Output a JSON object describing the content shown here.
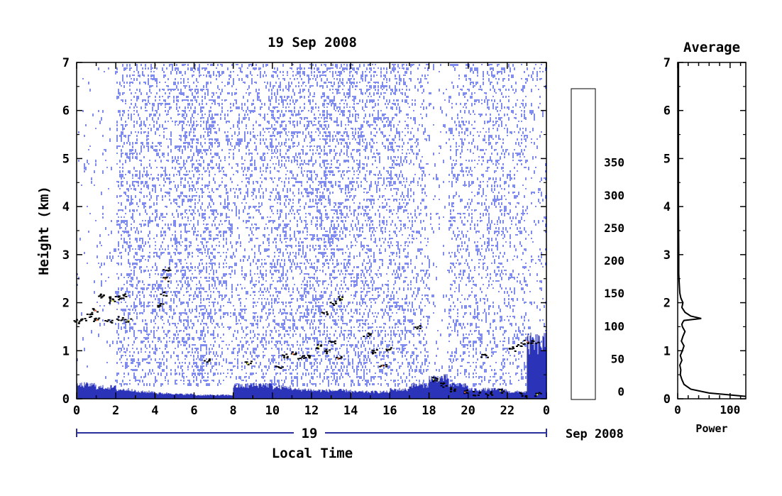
{
  "chart_data": [
    {
      "type": "heatmap",
      "title": "19 Sep 2008",
      "ylabel": "Height (km)",
      "xlabel": "Local Time",
      "xlim": [
        0,
        24
      ],
      "ylim": [
        0,
        7
      ],
      "x_ticks": [
        "0",
        "2",
        "4",
        "6",
        "8",
        "10",
        "12",
        "14",
        "16",
        "18",
        "20",
        "22",
        "0"
      ],
      "y_ticks": [
        "0",
        "1",
        "2",
        "3",
        "4",
        "5",
        "6",
        "7"
      ],
      "date_bar_label": "19",
      "date_bar_suffix": "Sep 2008",
      "noise_level_by_hour": [
        0.05,
        0.1,
        0.55,
        0.55,
        0.5,
        0.7,
        0.7,
        0.5,
        0.45,
        0.55,
        0.6,
        0.65,
        0.75,
        0.7,
        0.65,
        0.6,
        0.55,
        0.45,
        0.1,
        0.45,
        0.5,
        0.5,
        0.4,
        0.2
      ],
      "surface_layer_top_km_by_hour": [
        0.3,
        0.25,
        0.2,
        0.15,
        0.12,
        0.1,
        0.08,
        0.08,
        0.28,
        0.3,
        0.25,
        0.2,
        0.18,
        0.18,
        0.15,
        0.15,
        0.2,
        0.3,
        0.45,
        0.3,
        0.2,
        0.2,
        0.15,
        1.2
      ],
      "layer_echo": [
        {
          "x": 0.0,
          "y": 1.62
        },
        {
          "x": 0.3,
          "y": 1.68
        },
        {
          "x": 0.6,
          "y": 1.75
        },
        {
          "x": 0.9,
          "y": 1.85
        },
        {
          "x": 1.2,
          "y": 2.15
        },
        {
          "x": 1.5,
          "y": 2.15
        },
        {
          "x": 1.8,
          "y": 2.05
        },
        {
          "x": 2.1,
          "y": 2.12
        },
        {
          "x": 2.4,
          "y": 2.15
        },
        {
          "x": 1.0,
          "y": 1.65
        },
        {
          "x": 1.6,
          "y": 1.62
        },
        {
          "x": 2.2,
          "y": 1.68
        },
        {
          "x": 2.6,
          "y": 1.65
        },
        {
          "x": 4.2,
          "y": 1.95
        },
        {
          "x": 4.4,
          "y": 2.2
        },
        {
          "x": 4.5,
          "y": 2.5
        },
        {
          "x": 4.55,
          "y": 2.7
        },
        {
          "x": 6.6,
          "y": 0.8
        },
        {
          "x": 8.7,
          "y": 0.75
        },
        {
          "x": 10.3,
          "y": 0.65
        },
        {
          "x": 10.6,
          "y": 0.9
        },
        {
          "x": 11.0,
          "y": 0.95
        },
        {
          "x": 11.4,
          "y": 0.88
        },
        {
          "x": 11.8,
          "y": 0.9
        },
        {
          "x": 12.3,
          "y": 1.1
        },
        {
          "x": 12.7,
          "y": 1.0
        },
        {
          "x": 13.0,
          "y": 1.2
        },
        {
          "x": 13.3,
          "y": 0.85
        },
        {
          "x": 12.6,
          "y": 1.8
        },
        {
          "x": 13.1,
          "y": 2.0
        },
        {
          "x": 13.5,
          "y": 2.1
        },
        {
          "x": 14.8,
          "y": 1.35
        },
        {
          "x": 15.2,
          "y": 1.0
        },
        {
          "x": 15.6,
          "y": 0.7
        },
        {
          "x": 15.9,
          "y": 1.05
        },
        {
          "x": 17.4,
          "y": 1.5
        },
        {
          "x": 18.2,
          "y": 0.42
        },
        {
          "x": 18.7,
          "y": 0.3
        },
        {
          "x": 19.2,
          "y": 0.2
        },
        {
          "x": 19.8,
          "y": 0.15
        },
        {
          "x": 20.4,
          "y": 0.12
        },
        {
          "x": 21.0,
          "y": 0.12
        },
        {
          "x": 21.6,
          "y": 0.18
        },
        {
          "x": 22.2,
          "y": 1.05
        },
        {
          "x": 22.6,
          "y": 1.15
        },
        {
          "x": 23.0,
          "y": 1.2
        },
        {
          "x": 23.4,
          "y": 1.18
        },
        {
          "x": 22.8,
          "y": 0.1
        },
        {
          "x": 23.5,
          "y": 0.1
        },
        {
          "x": 20.8,
          "y": 0.9
        }
      ]
    },
    {
      "type": "line",
      "title": "Average",
      "xlabel": "Power",
      "xlim": [
        0,
        130
      ],
      "ylim": [
        0,
        7
      ],
      "x_ticks": [
        "0",
        "100"
      ],
      "y_ticks": [
        "0",
        "1",
        "2",
        "3",
        "4",
        "5",
        "6",
        "7"
      ],
      "series": [
        {
          "x": [
            130,
            60,
            25,
            12,
            8,
            5,
            6,
            4,
            8,
            5,
            9,
            12,
            7,
            10,
            14,
            9,
            8,
            10,
            12,
            45,
            25,
            14,
            8,
            10,
            6,
            4,
            3,
            2,
            2,
            1.5,
            1.5,
            1.5
          ],
          "y": [
            0.05,
            0.12,
            0.2,
            0.3,
            0.4,
            0.5,
            0.6,
            0.7,
            0.8,
            0.9,
            1.0,
            1.1,
            1.2,
            1.3,
            1.4,
            1.5,
            1.55,
            1.6,
            1.63,
            1.67,
            1.72,
            1.8,
            1.9,
            2.0,
            2.1,
            2.2,
            2.4,
            2.6,
            3.0,
            4.0,
            5.5,
            7.0
          ]
        }
      ]
    }
  ],
  "colorbar": {
    "ticks": [
      "0",
      "50",
      "100",
      "150",
      "200",
      "250",
      "300",
      "350"
    ],
    "range": [
      0,
      380
    ],
    "colors": [
      "#ffffff",
      "#2b2f99",
      "#2b34b8",
      "#2d3fe0",
      "#3358f0",
      "#3a80f0",
      "#3aa8f0",
      "#33ccf0",
      "#33eeee",
      "#5ef2c4",
      "#8ef29a",
      "#b5ee6a",
      "#e2f23c",
      "#fff030",
      "#ffcc33",
      "#ffa033",
      "#ff7033",
      "#ff4a33",
      "#f03030"
    ]
  }
}
